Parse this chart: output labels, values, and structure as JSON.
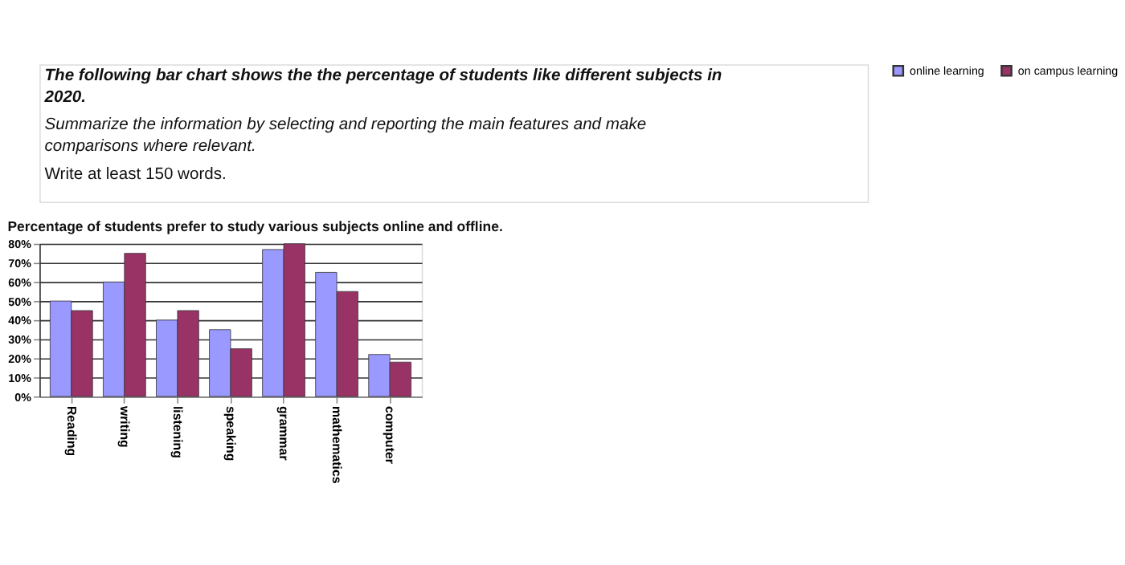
{
  "chart_data": {
    "type": "bar",
    "title": "Percentage of students prefer to study various subjects online and offline.",
    "annotations": [
      "The following bar chart shows the the percentage of students like different subjects in 2020.",
      "Summarize the information by selecting and reporting the main features and make comparisons where relevant.",
      "Write at least 150 words."
    ],
    "categories": [
      "Reading",
      "writing",
      "listening",
      "speaking",
      "grammar",
      "mathematics",
      "computer"
    ],
    "series": [
      {
        "name": "online learning",
        "color": "#9999ff",
        "values": [
          50,
          60,
          40,
          35,
          77,
          65,
          22
        ]
      },
      {
        "name": "on campus learning",
        "color": "#993366",
        "values": [
          45,
          75,
          45,
          25,
          80,
          55,
          18
        ]
      }
    ],
    "ylim": [
      0,
      80
    ],
    "yticks": [
      {
        "value": 0,
        "label": "0%"
      },
      {
        "value": 10,
        "label": "10%"
      },
      {
        "value": 20,
        "label": "20%"
      },
      {
        "value": 30,
        "label": "30%"
      },
      {
        "value": 40,
        "label": "40%"
      },
      {
        "value": 50,
        "label": "50%"
      },
      {
        "value": 60,
        "label": "60%"
      },
      {
        "value": 70,
        "label": "70%"
      },
      {
        "value": 80,
        "label": "80%"
      }
    ],
    "grid": "y",
    "legend": "top right"
  }
}
